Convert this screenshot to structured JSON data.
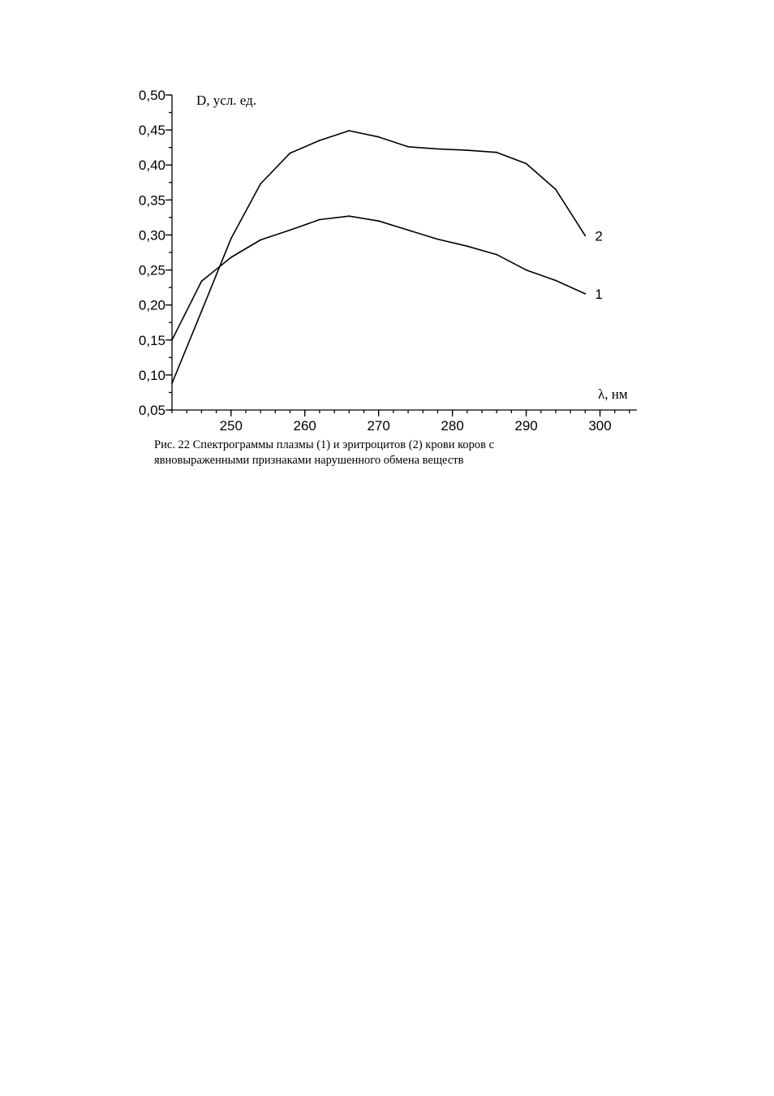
{
  "chart_data": {
    "type": "line",
    "ylabel": "D, усл. ед.",
    "xlabel": "λ, нм",
    "xlim": [
      242,
      305
    ],
    "ylim": [
      0.05,
      0.5
    ],
    "x_ticks": [
      250,
      260,
      270,
      280,
      290,
      300
    ],
    "x_tick_labels": [
      "250",
      "260",
      "270",
      "280",
      "290",
      "300"
    ],
    "x_minor_step": 2,
    "y_ticks": [
      0.05,
      0.1,
      0.15,
      0.2,
      0.25,
      0.3,
      0.35,
      0.4,
      0.45,
      0.5
    ],
    "y_tick_labels": [
      "0,05",
      "0,10",
      "0,15",
      "0,20",
      "0,25",
      "0,30",
      "0,35",
      "0,40",
      "0,45",
      "0,50"
    ],
    "y_minor_step": 0.025,
    "grid": false,
    "legend": "none",
    "series": [
      {
        "label": "1",
        "color": "#000000",
        "x": [
          242,
          246,
          250,
          254,
          258,
          262,
          266,
          270,
          274,
          278,
          282,
          286,
          290,
          294,
          298
        ],
        "y": [
          0.15,
          0.234,
          0.268,
          0.293,
          0.307,
          0.322,
          0.327,
          0.32,
          0.307,
          0.294,
          0.284,
          0.272,
          0.25,
          0.235,
          0.216
        ]
      },
      {
        "label": "2",
        "color": "#000000",
        "x": [
          242,
          246,
          250,
          254,
          258,
          262,
          266,
          270,
          274,
          278,
          282,
          286,
          290,
          294,
          298
        ],
        "y": [
          0.088,
          0.191,
          0.295,
          0.373,
          0.417,
          0.435,
          0.449,
          0.44,
          0.426,
          0.423,
          0.421,
          0.418,
          0.402,
          0.365,
          0.299
        ]
      }
    ]
  },
  "caption": {
    "line1": "Рис. 22 Спектрограммы плазмы (1) и эритроцитов (2) крови коров с",
    "line2": "явновыраженными признаками нарушенного обмена веществ"
  }
}
